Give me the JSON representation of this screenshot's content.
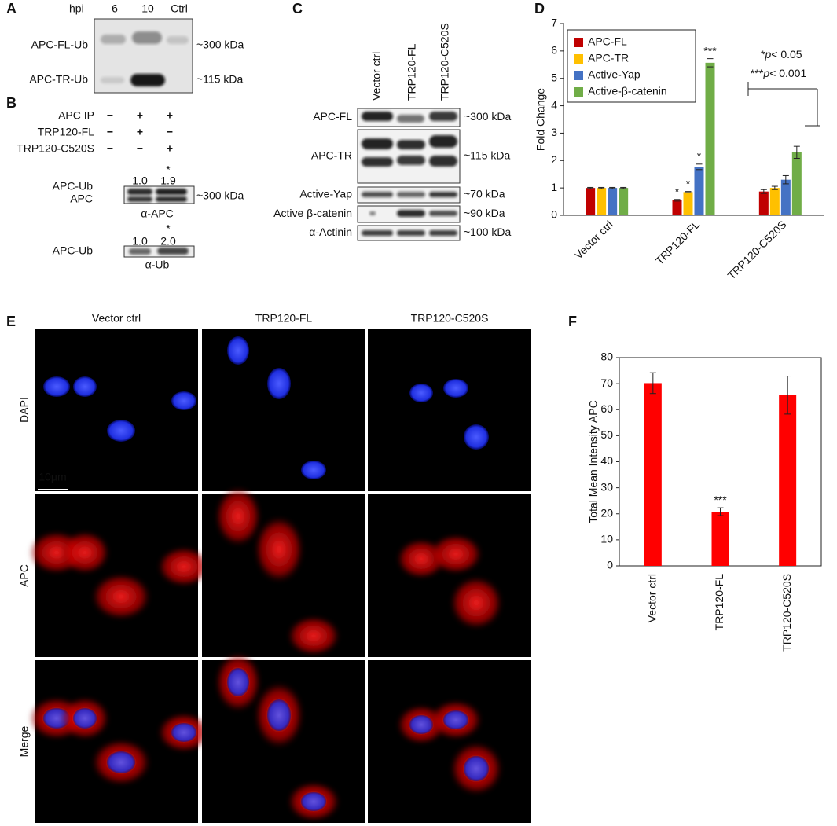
{
  "panel_labels": [
    "A",
    "B",
    "C",
    "D",
    "E",
    "F"
  ],
  "panel_a": {
    "hpi_label": "hpi",
    "lanes": [
      "6",
      "10",
      "Ctrl"
    ],
    "bands": [
      "APC-FL-Ub",
      "APC-TR-Ub"
    ],
    "sizes": [
      "~300 kDa",
      "~115 kDa"
    ]
  },
  "panel_b": {
    "conditions": [
      {
        "label": "APC IP",
        "signs": [
          "−",
          "+",
          "+"
        ]
      },
      {
        "label": "TRP120-FL",
        "signs": [
          "−",
          "+",
          "−"
        ]
      },
      {
        "label": "TRP120-C520S",
        "signs": [
          "−",
          "−",
          "+"
        ]
      }
    ],
    "blots": [
      {
        "quant": [
          "1.0",
          "1.9"
        ],
        "star": "*",
        "bands": [
          "APC-Ub",
          "APC"
        ],
        "size": "~300 kDa",
        "antibody": "α-APC"
      },
      {
        "quant": [
          "1.0",
          "2.0"
        ],
        "star": "*",
        "bands": [
          "APC-Ub"
        ],
        "antibody": "α-Ub"
      }
    ]
  },
  "panel_c": {
    "lanes": [
      "Vector ctrl",
      "TRP120-FL",
      "TRP120-C520S"
    ],
    "rows": [
      {
        "label": "APC-FL",
        "size": "~300 kDa"
      },
      {
        "label": "APC-TR",
        "size": "~115 kDa"
      },
      {
        "label": "Active-Yap",
        "size": "~70 kDa"
      },
      {
        "label": "Active β-catenin",
        "size": "~90 kDa"
      },
      {
        "label": "α-Actinin",
        "size": "~100 kDa"
      }
    ]
  },
  "panel_e": {
    "columns": [
      "Vector ctrl",
      "TRP120-FL",
      "TRP120-C520S"
    ],
    "rows": [
      "DAPI",
      "APC",
      "Merge"
    ],
    "scale_bar": "10μm"
  },
  "chart_data": [
    {
      "type": "bar",
      "y_label": "Fold Change",
      "categories": [
        "Vector ctrl",
        "TRP120-FL",
        "TRP120-C520S"
      ],
      "series": [
        {
          "name": "APC-FL",
          "color": "#c00000",
          "values": [
            1.0,
            0.55,
            0.87
          ],
          "errors": [
            0.02,
            0.03,
            0.07
          ],
          "significance": [
            null,
            "*",
            null
          ]
        },
        {
          "name": "APC-TR",
          "color": "#ffc000",
          "values": [
            1.0,
            0.85,
            1.0
          ],
          "errors": [
            0.02,
            0.02,
            0.06
          ],
          "significance": [
            null,
            "*",
            null
          ]
        },
        {
          "name": "Active-Yap",
          "color": "#4472c4",
          "values": [
            1.0,
            1.77,
            1.3
          ],
          "errors": [
            0.02,
            0.1,
            0.15
          ],
          "significance": [
            null,
            "*",
            null
          ]
        },
        {
          "name": "Active-β-catenin",
          "color": "#70ad47",
          "values": [
            1.0,
            5.57,
            2.3
          ],
          "errors": [
            0.02,
            0.15,
            0.22
          ],
          "significance": [
            null,
            "***",
            null
          ]
        }
      ],
      "ylim": [
        0,
        7
      ],
      "yticks": [
        0,
        1,
        2,
        3,
        4,
        5,
        6,
        7
      ],
      "legend": "top-left",
      "notes": [
        {
          "stars": "*",
          "p": "p",
          "text": "< 0.05"
        },
        {
          "stars": "***",
          "p": "p",
          "text": "< 0.001"
        }
      ]
    },
    {
      "type": "bar",
      "y_label": "Total Mean Intensity APC",
      "categories": [
        "Vector ctrl",
        "TRP120-FL",
        "TRP120-C520S"
      ],
      "values": [
        70.2,
        20.8,
        65.6
      ],
      "errors": [
        4.0,
        1.5,
        7.3
      ],
      "significance": [
        null,
        "***",
        null
      ],
      "color": "#ff0000",
      "ylim": [
        0,
        80
      ],
      "yticks": [
        0,
        10,
        20,
        30,
        40,
        50,
        60,
        70,
        80
      ]
    }
  ]
}
